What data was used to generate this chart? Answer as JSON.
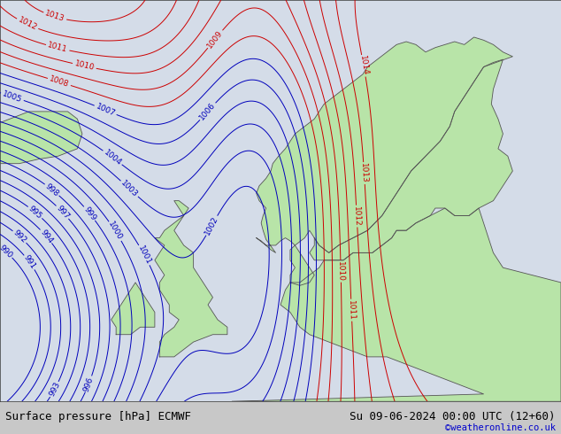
{
  "title_left": "Surface pressure [hPa] ECMWF",
  "title_right": "Su 09-06-2024 00:00 UTC (12+60)",
  "copyright": "©weatheronline.co.uk",
  "background_color": "#d4dce8",
  "land_color": "#b8e4a8",
  "sea_color": "#c8d4e0",
  "border_color": "#888888",
  "contour_color_blue": "#0000bb",
  "contour_color_red": "#cc0000",
  "contour_color_black": "#000000",
  "bottom_bar_color": "#c8c8c8",
  "label_fontsize": 6.5,
  "title_fontsize": 9
}
